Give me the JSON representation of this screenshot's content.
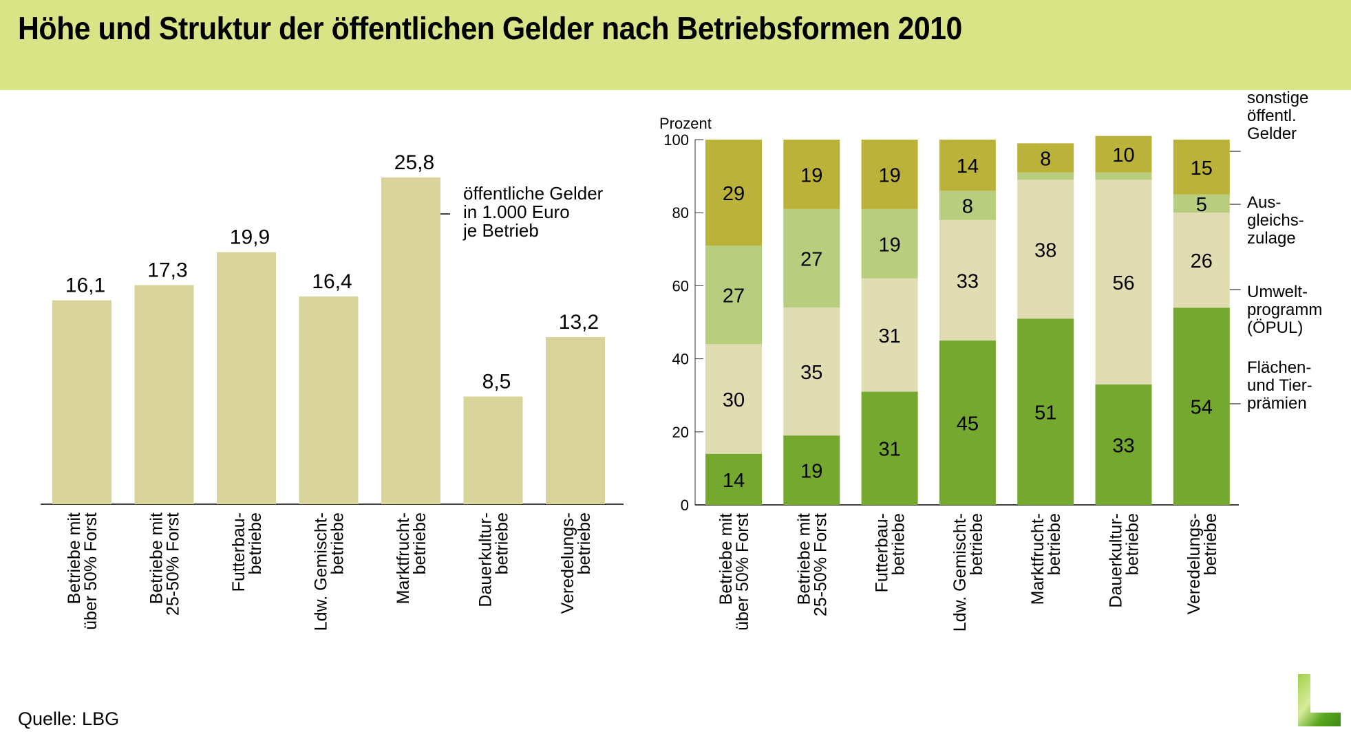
{
  "header": {
    "title": "Höhe und Struktur der öffentlichen Gelder nach Betriebsformen 2010"
  },
  "source": "Quelle: LBG",
  "logo": {
    "icon": "lbg-grass-letter-l-logo",
    "letter": "L"
  },
  "colors": {
    "header_bg": "#d8e486",
    "bar_left": "#d9d49b",
    "flaechen_tier": "#74a82e",
    "oepul": "#e0ddb3",
    "ausgleichszulage": "#b8cd7e",
    "sonstige": "#bbb23a"
  },
  "chart_data": [
    {
      "type": "bar",
      "title": "",
      "annotation": [
        "öffentliche Gelder",
        "in 1.000 Euro",
        "je Betrieb"
      ],
      "categories": [
        [
          "Betriebe mit",
          "über 50% Forst"
        ],
        [
          "Betriebe mit",
          "25-50% Forst"
        ],
        [
          "Futterbau-",
          "betriebe"
        ],
        [
          "Ldw. Gemischt-",
          "betriebe"
        ],
        [
          "Marktfrucht-",
          "betriebe"
        ],
        [
          "Dauerkultur-",
          "betriebe"
        ],
        [
          "Veredelungs-",
          "betriebe"
        ]
      ],
      "values": [
        16.1,
        17.3,
        19.9,
        16.4,
        25.8,
        8.5,
        13.2
      ],
      "value_labels": [
        "16,1",
        "17,3",
        "19,9",
        "16,4",
        "25,8",
        "8,5",
        "13,2"
      ],
      "xlabel": "",
      "ylabel": "",
      "ylim": [
        0,
        28
      ],
      "grid": false,
      "legend": "none"
    },
    {
      "type": "bar",
      "stacked": true,
      "title": "",
      "ylabel": "Prozent",
      "ylim": [
        0,
        100
      ],
      "yticks": [
        0,
        20,
        40,
        60,
        80,
        100
      ],
      "grid": false,
      "legend": "right",
      "categories": [
        [
          "Betriebe mit",
          "über 50% Forst"
        ],
        [
          "Betriebe mit",
          "25-50% Forst"
        ],
        [
          "Futterbau-",
          "betriebe"
        ],
        [
          "Ldw. Gemischt-",
          "betriebe"
        ],
        [
          "Marktfrucht-",
          "betriebe"
        ],
        [
          "Dauerkultur-",
          "betriebe"
        ],
        [
          "Veredelungs-",
          "betriebe"
        ]
      ],
      "series": [
        {
          "name": "Flächen- und Tierprämien",
          "legend_lines": [
            "Flächen-",
            "und Tier-",
            "prämien"
          ],
          "color_key": "flaechen_tier",
          "values": [
            14,
            19,
            31,
            45,
            51,
            33,
            54
          ],
          "labels": [
            "14",
            "19",
            "31",
            "45",
            "51",
            "33",
            "54"
          ]
        },
        {
          "name": "Umweltprogramm (ÖPUL)",
          "legend_lines": [
            "Umwelt-",
            "programm",
            "(ÖPUL)"
          ],
          "color_key": "oepul",
          "values": [
            30,
            35,
            31,
            33,
            38,
            56,
            26
          ],
          "labels": [
            "30",
            "35",
            "31",
            "33",
            "38",
            "56",
            "26"
          ]
        },
        {
          "name": "Ausgleichszulage",
          "legend_lines": [
            "Aus-",
            "gleichs-",
            "zulage"
          ],
          "color_key": "ausgleichszulage",
          "values": [
            27,
            27,
            19,
            8,
            2,
            2,
            5
          ],
          "labels": [
            "27",
            "27",
            "19",
            "8",
            "",
            "",
            "5"
          ]
        },
        {
          "name": "sonstige öffentl. Gelder",
          "legend_lines": [
            "sonstige",
            "öffentl.",
            "Gelder"
          ],
          "color_key": "sonstige",
          "values": [
            29,
            19,
            19,
            14,
            8,
            10,
            15
          ],
          "labels": [
            "29",
            "19",
            "19",
            "14",
            "8",
            "10",
            "15"
          ]
        }
      ]
    }
  ]
}
